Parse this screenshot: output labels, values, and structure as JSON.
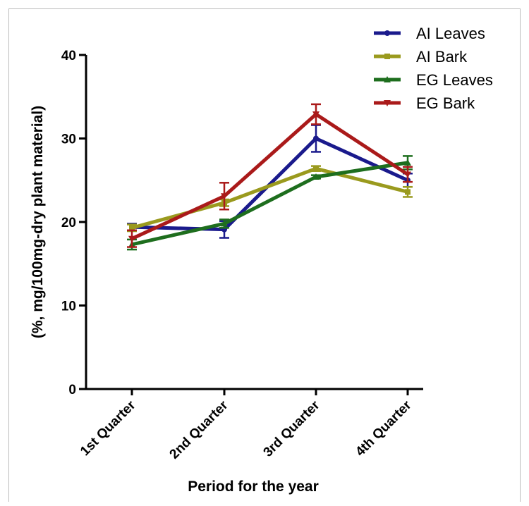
{
  "chart_data": {
    "type": "line",
    "title": "",
    "xlabel": "Period for the year",
    "ylabel": "(%, mg/100mg-dry plant material)",
    "categories": [
      "1st Quarter",
      "2nd Quarter",
      "3rd Quarter",
      "4th Quarter"
    ],
    "ylim": [
      0,
      40
    ],
    "yticks": [
      0,
      10,
      20,
      30,
      40
    ],
    "grid": false,
    "legend_position": "top-right",
    "series": [
      {
        "name": "AI Leaves",
        "color": "#1a1a8c",
        "marker": "circle",
        "values": [
          19.4,
          19.1,
          30.0,
          25.0
        ],
        "errors": [
          0.4,
          1.0,
          1.6,
          0.8
        ]
      },
      {
        "name": "AI Bark",
        "color": "#9a9a1e",
        "marker": "square",
        "values": [
          19.3,
          22.3,
          26.4,
          23.6
        ],
        "errors": [
          0.4,
          0.4,
          0.3,
          0.6
        ]
      },
      {
        "name": "EG Leaves",
        "color": "#1e6e1e",
        "marker": "triangle-up",
        "values": [
          17.3,
          19.8,
          25.4,
          27.1
        ],
        "errors": [
          0.6,
          0.5,
          0.2,
          0.8
        ]
      },
      {
        "name": "EG Bark",
        "color": "#aa1a1a",
        "marker": "triangle-down",
        "values": [
          18.0,
          23.1,
          32.9,
          25.7
        ],
        "errors": [
          1.0,
          1.6,
          1.2,
          0.9
        ]
      }
    ]
  }
}
